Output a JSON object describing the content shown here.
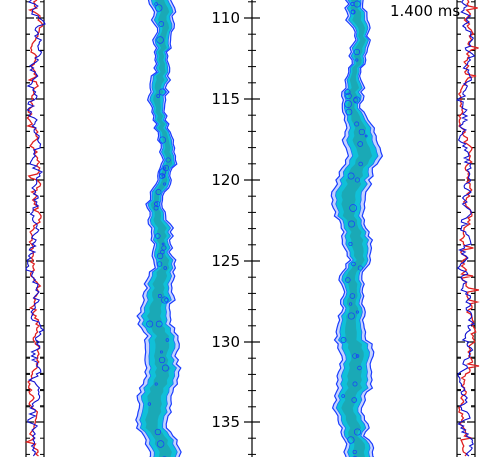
{
  "time_label": "1.400 ms",
  "center_axis": {
    "ticks": [
      "110",
      "115",
      "120",
      "125",
      "130",
      "135"
    ]
  },
  "colors": {
    "profile_red": "#e02020",
    "profile_blue": "#1010d0",
    "plume_edge": "#1a3cff",
    "plume_core": "#10c0d8",
    "plume_inner": "#20a0a8",
    "axis": "#000000"
  },
  "panels": [
    "left-profile",
    "left-plume",
    "center-axis",
    "right-plume",
    "right-profile"
  ]
}
